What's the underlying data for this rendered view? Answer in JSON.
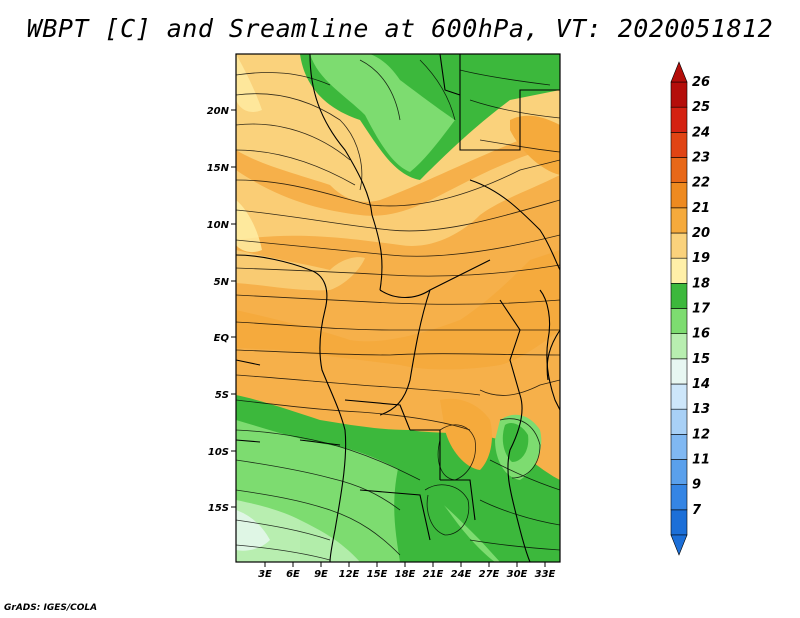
{
  "title": "WBPT [C] and Sreamline at 600hPa, VT: 2020051812",
  "credit": "GrADS: IGES/COLA",
  "lat_ticks": [
    "20N",
    "15N",
    "10N",
    "5N",
    "EQ",
    "5S",
    "10S",
    "15S"
  ],
  "lon_ticks": [
    "3E",
    "6E",
    "9E",
    "12E",
    "15E",
    "18E",
    "21E",
    "24E",
    "27E",
    "30E",
    "33E"
  ],
  "colorbar": {
    "labels": [
      "7",
      "9",
      "11",
      "12",
      "13",
      "14",
      "15",
      "16",
      "17",
      "18",
      "19",
      "20",
      "21",
      "22",
      "23",
      "24",
      "25",
      "26"
    ],
    "colors": [
      "#1c6fd8",
      "#3585e4",
      "#5aa0ec",
      "#80b8f2",
      "#a8d0f6",
      "#cde6fa",
      "#e8f7f2",
      "#b8eeb0",
      "#7ddc70",
      "#3cb83c",
      "#fff0a8",
      "#fad27c",
      "#f5aa3c",
      "#ee8a20",
      "#e86818",
      "#e04414",
      "#d42212",
      "#b40e0a"
    ]
  }
}
